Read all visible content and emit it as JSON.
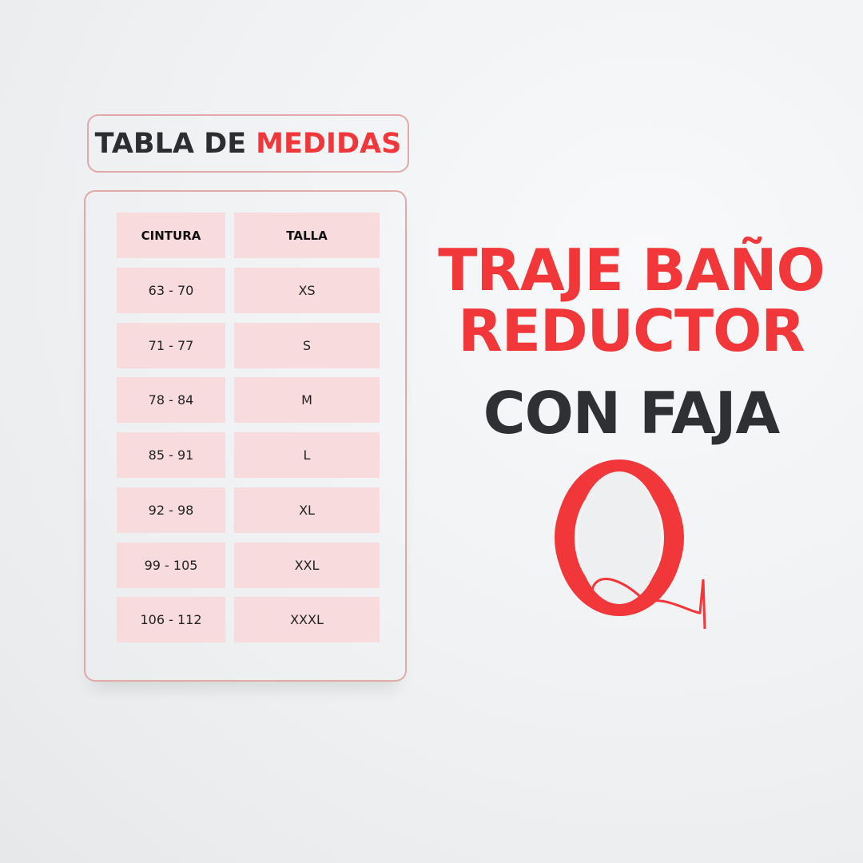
{
  "title": {
    "part1": "TABLA DE",
    "part2": "MEDIDAS"
  },
  "table": {
    "headers": [
      "CINTURA",
      "TALLA"
    ],
    "rows": [
      [
        "63 - 70",
        "XS"
      ],
      [
        "71 - 77",
        "S"
      ],
      [
        "78 - 84",
        "M"
      ],
      [
        "85 - 91",
        "L"
      ],
      [
        "92 - 98",
        "XL"
      ],
      [
        "99 - 105",
        "XXL"
      ],
      [
        "106 - 112",
        "XXXL"
      ]
    ]
  },
  "headline": {
    "line1": "TRAJE BAÑO",
    "line2": "REDUCTOR",
    "line3": "CON FAJA"
  },
  "logo": {
    "letter": "Q"
  },
  "colors": {
    "accent": "#f2373a",
    "dark": "#2e3033",
    "cell": "#f8dcdd",
    "border": "#e2a9aa"
  }
}
